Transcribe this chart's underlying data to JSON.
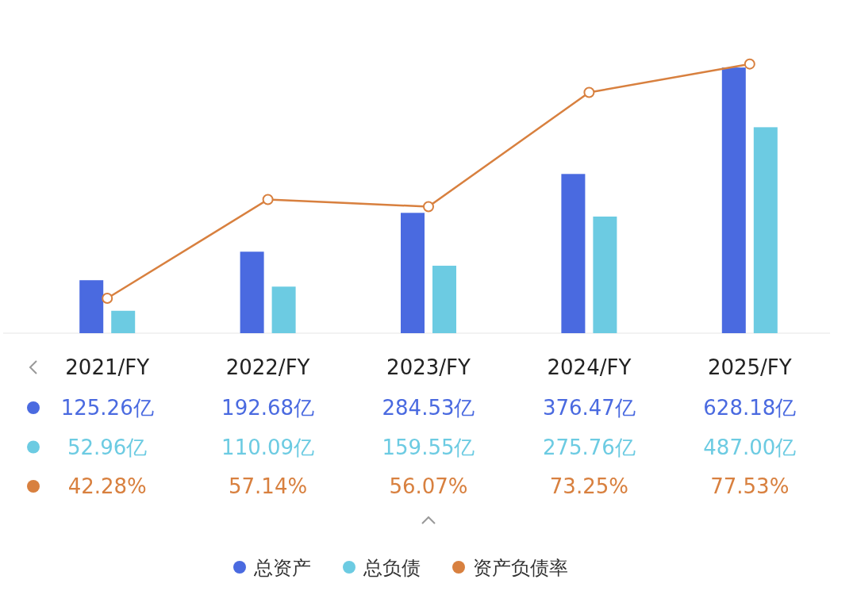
{
  "chart_data": {
    "type": "bar",
    "categories": [
      "2021/FY",
      "2022/FY",
      "2023/FY",
      "2024/FY",
      "2025/FY"
    ],
    "series": [
      {
        "name": "总资产",
        "color": "#4a6ae0",
        "values": [
          125.26,
          192.68,
          284.53,
          376.47,
          628.18
        ],
        "value_labels": [
          "125.26亿",
          "192.68亿",
          "284.53亿",
          "376.47亿",
          "628.18亿"
        ]
      },
      {
        "name": "总负债",
        "color": "#6ccbe2",
        "values": [
          52.96,
          110.09,
          159.55,
          275.76,
          487.0
        ],
        "value_labels": [
          "52.96亿",
          "110.09亿",
          "159.55亿",
          "275.76亿",
          "487.00亿"
        ]
      },
      {
        "name": "资产负债率",
        "type": "line",
        "axis": "y2",
        "color": "#d8803f",
        "marker": "circle",
        "values": [
          42.28,
          57.14,
          56.07,
          73.25,
          77.53
        ],
        "value_labels": [
          "42.28%",
          "57.14%",
          "56.07%",
          "73.25%",
          "77.53%"
        ]
      }
    ],
    "data_labels": true,
    "legend": "bottom"
  }
}
